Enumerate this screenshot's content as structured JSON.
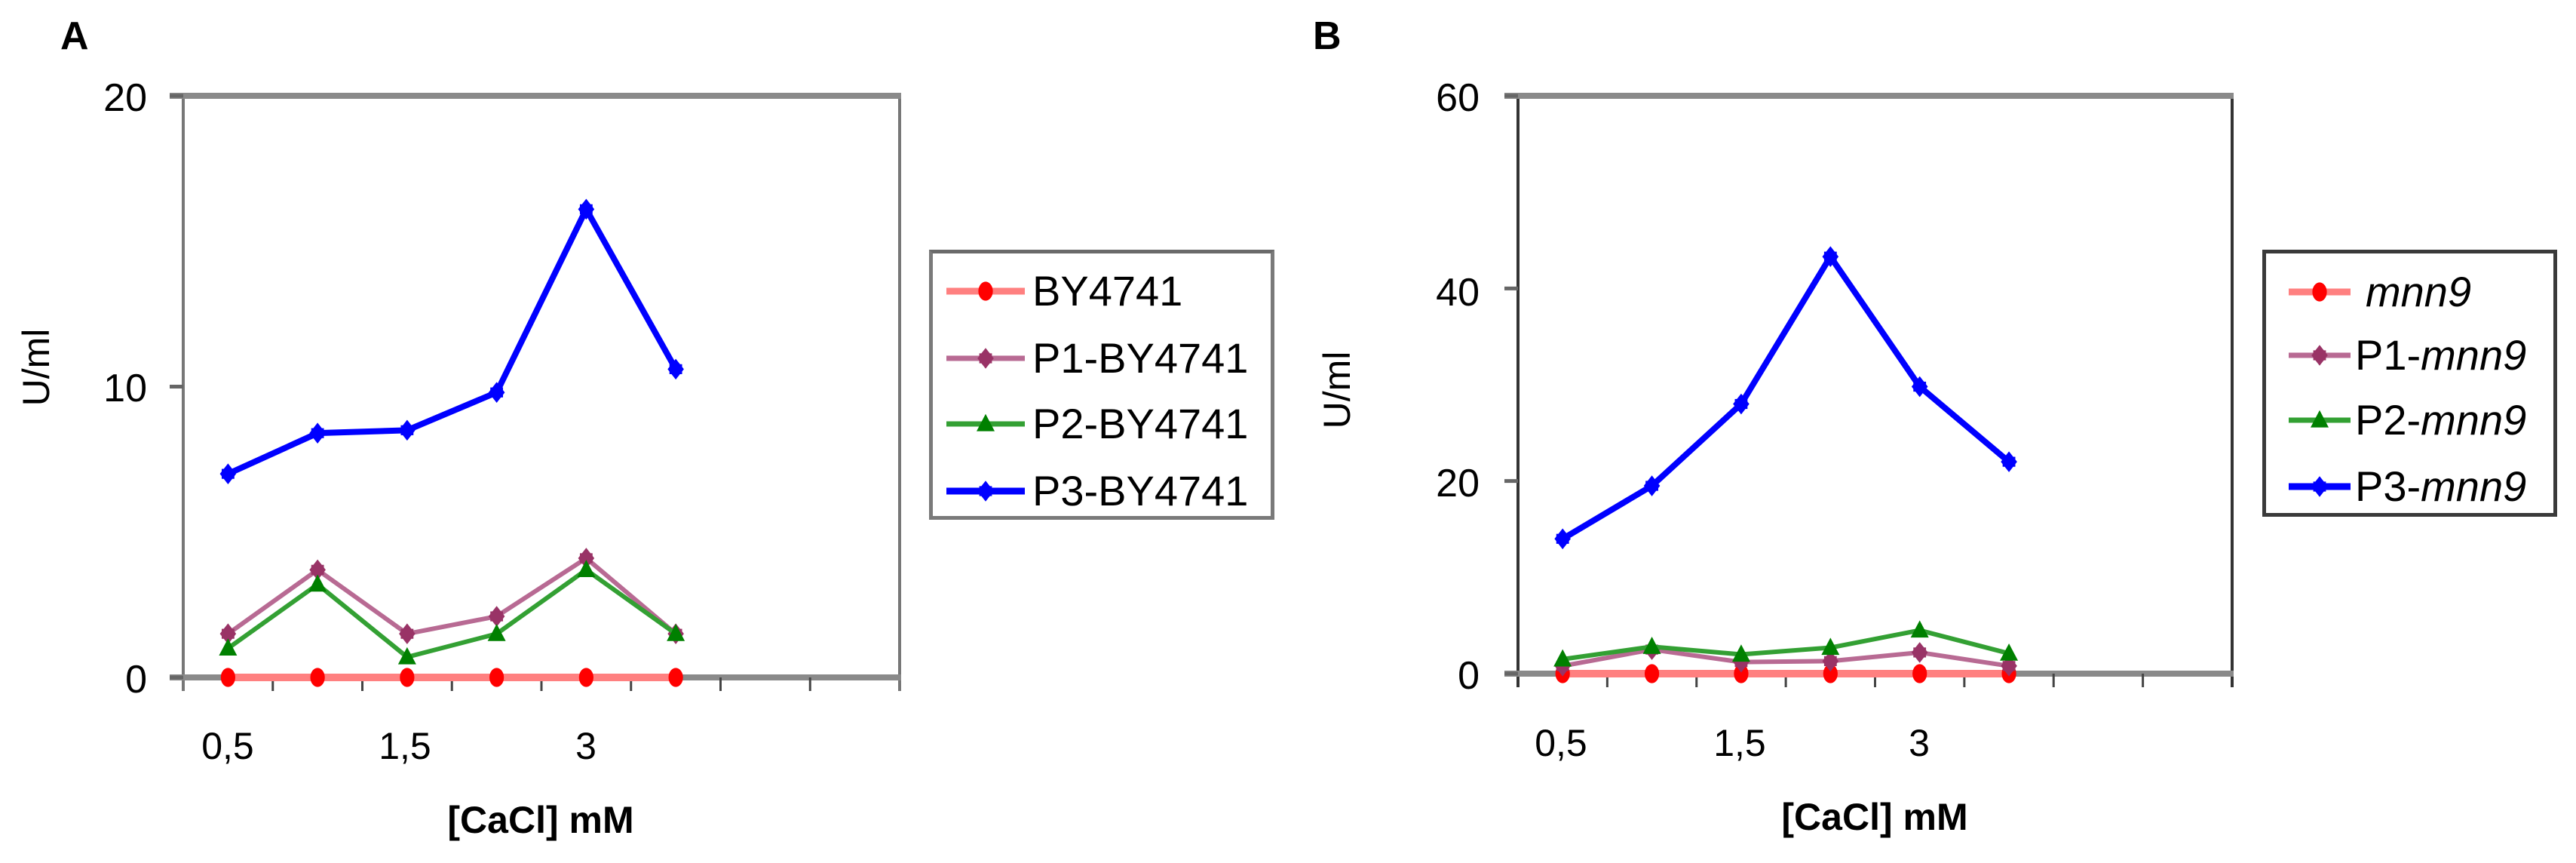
{
  "chart_data": [
    {
      "type": "line",
      "panel": "A",
      "title": "",
      "xlabel": "[CaCl] mM",
      "ylabel": "U/ml",
      "x_tick_labels": [
        "0,5",
        "",
        "1,5",
        "",
        "3",
        ""
      ],
      "categories_count": 6,
      "x_slots": 8,
      "ylim": [
        0,
        20
      ],
      "y_ticks": [
        0,
        10,
        20
      ],
      "grid": false,
      "legend_position": "right",
      "series": [
        {
          "name": "BY4741",
          "color": "#ff0000",
          "line_color": "#ff8080",
          "marker": "circle",
          "values": [
            0,
            0,
            0,
            0,
            0,
            0
          ]
        },
        {
          "name": "P1-BY4741",
          "color": "#993366",
          "line_color": "#b86a93",
          "marker": "diamond",
          "values": [
            1.5,
            3.7,
            1.5,
            2.1,
            4.1,
            1.5
          ]
        },
        {
          "name": "P2-BY4741",
          "color": "#008000",
          "line_color": "#33a033",
          "marker": "triangle",
          "values": [
            1.0,
            3.2,
            0.7,
            1.5,
            3.7,
            1.5
          ]
        },
        {
          "name": "P3-BY4741",
          "color": "#0000ff",
          "line_color": "#0000ff",
          "marker": "diamond",
          "values": [
            7.0,
            8.4,
            8.5,
            9.8,
            16.1,
            10.6
          ]
        }
      ]
    },
    {
      "type": "line",
      "panel": "B",
      "title": "",
      "xlabel": "[CaCl] mM",
      "ylabel": "U/ml",
      "x_tick_labels": [
        "0,5",
        "",
        "1,5",
        "",
        "3",
        ""
      ],
      "categories_count": 6,
      "x_slots": 8,
      "ylim": [
        0,
        60
      ],
      "y_ticks": [
        0,
        20,
        40,
        60
      ],
      "grid": false,
      "legend_position": "right",
      "series": [
        {
          "name": "mnn9",
          "prefix": "",
          "italic": "mnn9",
          "color": "#ff0000",
          "line_color": "#ff8080",
          "marker": "circle",
          "values": [
            0,
            0,
            0,
            0,
            0,
            0
          ]
        },
        {
          "name": "P1-mnn9",
          "prefix": "P1-",
          "italic": "mnn9",
          "color": "#993366",
          "line_color": "#b86a93",
          "marker": "diamond",
          "values": [
            0.8,
            2.5,
            1.2,
            1.3,
            2.2,
            0.8
          ]
        },
        {
          "name": "P2-mnn9",
          "prefix": "P2-",
          "italic": "mnn9",
          "color": "#008000",
          "line_color": "#33a033",
          "marker": "triangle",
          "values": [
            1.5,
            2.8,
            2.0,
            2.7,
            4.5,
            2.1
          ]
        },
        {
          "name": "P3-mnn9",
          "prefix": "P3-",
          "italic": "mnn9",
          "color": "#0000ff",
          "line_color": "#0000ff",
          "marker": "diamond",
          "values": [
            14.0,
            19.5,
            28.0,
            43.3,
            29.8,
            22.0
          ]
        }
      ]
    }
  ],
  "panels": {
    "A": {
      "letter": "A",
      "ylabel": "U/ml",
      "xlabel": "[CaCl] mM",
      "y_tick_labels": {
        "top": "20",
        "mid": "10",
        "zero": "0"
      },
      "x_tick_labels": {
        "t1": "0,5",
        "t2": "1,5",
        "t3": "3"
      },
      "legend": [
        {
          "label": "BY4741"
        },
        {
          "label": "P1-BY4741"
        },
        {
          "label": "P2-BY4741"
        },
        {
          "label": "P3-BY4741"
        }
      ]
    },
    "B": {
      "letter": "B",
      "ylabel": "U/ml",
      "xlabel": "[CaCl] mM",
      "y_tick_labels": {
        "t60": "60",
        "t40": "40",
        "t20": "20",
        "t0": "0"
      },
      "x_tick_labels": {
        "t1": "0,5",
        "t2": "1,5",
        "t3": "3"
      },
      "legend": [
        {
          "prefix": "",
          "italic": "mnn9"
        },
        {
          "prefix": "P1-",
          "italic": "mnn9"
        },
        {
          "prefix": "P2-",
          "italic": "mnn9"
        },
        {
          "prefix": "P3-",
          "italic": "mnn9"
        }
      ]
    }
  }
}
